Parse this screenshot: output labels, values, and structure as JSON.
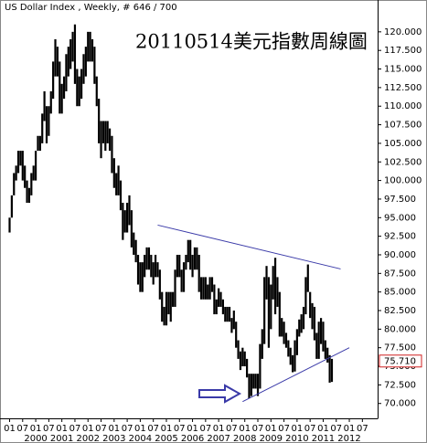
{
  "chart_data": {
    "type": "range-bar",
    "title": "US Dollar Index , Weekly, # 646 / 700",
    "annotation": "20110514美元指數周線圖",
    "color": "#000000",
    "x": [
      "1999-01",
      "1999-02",
      "1999-03",
      "1999-04",
      "1999-05",
      "1999-06",
      "1999-07",
      "1999-08",
      "1999-09",
      "1999-10",
      "1999-11",
      "1999-12",
      "2000-01",
      "2000-02",
      "2000-03",
      "2000-04",
      "2000-05",
      "2000-06",
      "2000-07",
      "2000-08",
      "2000-09",
      "2000-10",
      "2000-11",
      "2000-12",
      "2001-01",
      "2001-02",
      "2001-03",
      "2001-04",
      "2001-05",
      "2001-06",
      "2001-07",
      "2001-08",
      "2001-09",
      "2001-10",
      "2001-11",
      "2001-12",
      "2002-01",
      "2002-02",
      "2002-03",
      "2002-04",
      "2002-05",
      "2002-06",
      "2002-07",
      "2002-08",
      "2002-09",
      "2002-10",
      "2002-11",
      "2002-12",
      "2003-01",
      "2003-02",
      "2003-03",
      "2003-04",
      "2003-05",
      "2003-06",
      "2003-07",
      "2003-08",
      "2003-09",
      "2003-10",
      "2003-11",
      "2003-12",
      "2004-01",
      "2004-02",
      "2004-03",
      "2004-04",
      "2004-05",
      "2004-06",
      "2004-07",
      "2004-08",
      "2004-09",
      "2004-10",
      "2004-11",
      "2004-12",
      "2005-01",
      "2005-02",
      "2005-03",
      "2005-04",
      "2005-05",
      "2005-06",
      "2005-07",
      "2005-08",
      "2005-09",
      "2005-10",
      "2005-11",
      "2005-12",
      "2006-01",
      "2006-02",
      "2006-03",
      "2006-04",
      "2006-05",
      "2006-06",
      "2006-07",
      "2006-08",
      "2006-09",
      "2006-10",
      "2006-11",
      "2006-12",
      "2007-01",
      "2007-02",
      "2007-03",
      "2007-04",
      "2007-05",
      "2007-06",
      "2007-07",
      "2007-08",
      "2007-09",
      "2007-10",
      "2007-11",
      "2007-12",
      "2008-01",
      "2008-02",
      "2008-03",
      "2008-04",
      "2008-05",
      "2008-06",
      "2008-07",
      "2008-08",
      "2008-09",
      "2008-10",
      "2008-11",
      "2008-12",
      "2009-01",
      "2009-02",
      "2009-03",
      "2009-04",
      "2009-05",
      "2009-06",
      "2009-07",
      "2009-08",
      "2009-09",
      "2009-10",
      "2009-11",
      "2009-12",
      "2010-01",
      "2010-02",
      "2010-03",
      "2010-04",
      "2010-05",
      "2010-06",
      "2010-07",
      "2010-08",
      "2010-09",
      "2010-10",
      "2010-11",
      "2010-12",
      "2011-01",
      "2011-02",
      "2011-03",
      "2011-04",
      "2011-05"
    ],
    "high": [
      95,
      98,
      101,
      102,
      104,
      104,
      104,
      102,
      100,
      99,
      101,
      102,
      104,
      106,
      106,
      109,
      112,
      110,
      110,
      112,
      116,
      119,
      118,
      116,
      113,
      114,
      117,
      118,
      119,
      120,
      121,
      115,
      114,
      115,
      117,
      118,
      120,
      120,
      119,
      118,
      114,
      111,
      108,
      108,
      108,
      108,
      107,
      106,
      103,
      101,
      102,
      100,
      97,
      96,
      97,
      98,
      96,
      93,
      92,
      90,
      89,
      89,
      90,
      91,
      91,
      90,
      89,
      90,
      89,
      88,
      85,
      83,
      85,
      85,
      85,
      85,
      88,
      90,
      90,
      88,
      89,
      90,
      92,
      92,
      90,
      91,
      91,
      90,
      87,
      87,
      87,
      86,
      87,
      87,
      86,
      84,
      85.5,
      85,
      84,
      83,
      83,
      83,
      81.5,
      82.5,
      81,
      78.5,
      77,
      77.5,
      77,
      76,
      74,
      74,
      74,
      74,
      74,
      78,
      80,
      87,
      88.5,
      87,
      86,
      88.5,
      89.6,
      87,
      85,
      81.5,
      81,
      79.5,
      78.5,
      77.5,
      76.5,
      78.5,
      80,
      81.3,
      82,
      83,
      87,
      88.7,
      85,
      83.5,
      83,
      79.5,
      81,
      81.5,
      81,
      78.5,
      77.5,
      76.5,
      76
    ],
    "low": [
      93,
      95,
      98,
      100,
      101,
      102,
      100,
      99,
      97,
      97,
      98,
      100,
      100,
      104,
      104,
      105,
      108,
      105,
      106,
      109,
      111,
      114,
      114,
      109,
      109,
      111,
      112,
      114,
      115,
      116,
      113,
      110,
      110,
      111,
      113,
      114,
      116,
      116,
      116,
      113,
      110,
      105,
      103,
      105,
      104,
      105,
      104,
      101,
      99,
      98,
      98,
      96,
      92,
      93,
      93,
      94,
      91,
      90,
      89,
      86,
      85,
      85,
      87,
      88,
      88,
      87,
      86,
      87,
      87,
      84,
      81,
      80.5,
      80.5,
      82,
      81,
      83,
      83,
      87,
      87,
      85,
      85,
      88,
      89,
      88,
      87,
      88,
      88,
      85,
      84,
      84,
      84,
      84,
      84,
      85,
      82,
      82,
      83,
      83,
      82,
      81,
      81,
      81,
      79.5,
      80,
      77.5,
      76,
      74.5,
      75,
      75,
      73.5,
      70.7,
      71,
      72,
      72,
      71,
      72,
      76,
      78,
      84,
      77.5,
      80,
      84,
      82,
      83,
      79,
      79,
      78,
      77.5,
      76.3,
      75.2,
      74.2,
      74.3,
      76.5,
      79,
      79.5,
      80,
      82,
      85,
      81.5,
      80,
      78.5,
      76,
      76,
      78,
      77,
      76,
      75.5,
      72.8,
      72.9
    ],
    "last_value": {
      "value": 75.71,
      "label": "75.710"
    },
    "trendlines": [
      {
        "color": "#3a3aa8",
        "x": [
          "2004-09",
          "2011-09"
        ],
        "y": [
          94,
          88.1
        ]
      },
      {
        "color": "#3a3aa8",
        "x": [
          "2007-12",
          "2012-01"
        ],
        "y": [
          70.25,
          77.5
        ]
      }
    ],
    "xlim": [
      "1999-01",
      "2013-02"
    ],
    "xticks": [
      {
        "value": "1999-01",
        "label": "01"
      },
      {
        "value": "1999-07",
        "label": "07"
      },
      {
        "value": "2000-01",
        "label": "01"
      },
      {
        "value": "2000-07",
        "label": "07"
      },
      {
        "value": "2001-01",
        "label": "01"
      },
      {
        "value": "2001-07",
        "label": "07"
      },
      {
        "value": "2002-01",
        "label": "01"
      },
      {
        "value": "2002-07",
        "label": "07"
      },
      {
        "value": "2003-01",
        "label": "01"
      },
      {
        "value": "2003-07",
        "label": "07"
      },
      {
        "value": "2004-01",
        "label": "01"
      },
      {
        "value": "2004-07",
        "label": "07"
      },
      {
        "value": "2005-01",
        "label": "01"
      },
      {
        "value": "2005-07",
        "label": "07"
      },
      {
        "value": "2006-01",
        "label": "01"
      },
      {
        "value": "2006-07",
        "label": "07"
      },
      {
        "value": "2007-01",
        "label": "01"
      },
      {
        "value": "2007-07",
        "label": "07"
      },
      {
        "value": "2008-01",
        "label": "01"
      },
      {
        "value": "2008-07",
        "label": "07"
      },
      {
        "value": "2009-01",
        "label": "01"
      },
      {
        "value": "2009-07",
        "label": "07"
      },
      {
        "value": "2010-01",
        "label": "01"
      },
      {
        "value": "2010-07",
        "label": "07"
      },
      {
        "value": "2011-01",
        "label": "01"
      },
      {
        "value": "2011-07",
        "label": "07"
      },
      {
        "value": "2012-01",
        "label": "01"
      },
      {
        "value": "2012-07",
        "label": "07"
      }
    ],
    "year_labels": [
      {
        "value": "2000-01",
        "label": "2000"
      },
      {
        "value": "2001-01",
        "label": "2001"
      },
      {
        "value": "2002-01",
        "label": "2002"
      },
      {
        "value": "2003-01",
        "label": "2003"
      },
      {
        "value": "2004-01",
        "label": "2004"
      },
      {
        "value": "2005-01",
        "label": "2005"
      },
      {
        "value": "2006-01",
        "label": "2006"
      },
      {
        "value": "2007-01",
        "label": "2007"
      },
      {
        "value": "2008-01",
        "label": "2008"
      },
      {
        "value": "2009-01",
        "label": "2009"
      },
      {
        "value": "2010-01",
        "label": "2010"
      },
      {
        "value": "2011-01",
        "label": "2011"
      },
      {
        "value": "2012-01",
        "label": "2012"
      }
    ],
    "ylim": [
      68,
      123.3
    ],
    "yticks": [
      {
        "value": 70,
        "label": "70.000"
      },
      {
        "value": 72.5,
        "label": "72.500"
      },
      {
        "value": 75,
        "label": "75.000"
      },
      {
        "value": 77.5,
        "label": "77.500"
      },
      {
        "value": 80,
        "label": "80.000"
      },
      {
        "value": 82.5,
        "label": "82.500"
      },
      {
        "value": 85,
        "label": "85.000"
      },
      {
        "value": 87.5,
        "label": "87.500"
      },
      {
        "value": 90,
        "label": "90.000"
      },
      {
        "value": 92.5,
        "label": "92.500"
      },
      {
        "value": 95,
        "label": "95.000"
      },
      {
        "value": 97.5,
        "label": "97.500"
      },
      {
        "value": 100,
        "label": "100.000"
      },
      {
        "value": 102.5,
        "label": "102.500"
      },
      {
        "value": 105,
        "label": "105.000"
      },
      {
        "value": 107.5,
        "label": "107.500"
      },
      {
        "value": 110,
        "label": "110.000"
      },
      {
        "value": 112.5,
        "label": "112.500"
      },
      {
        "value": 115,
        "label": "115.000"
      },
      {
        "value": 117.5,
        "label": "117.500"
      },
      {
        "value": 120,
        "label": "120.000"
      }
    ]
  }
}
